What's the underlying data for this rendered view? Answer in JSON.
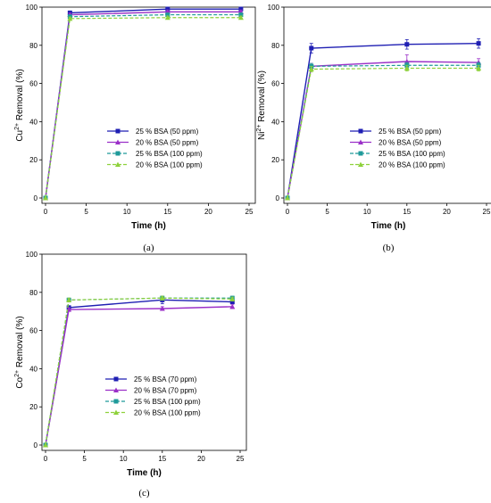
{
  "chart_data": [
    {
      "type": "line",
      "panel_label": "(a)",
      "xlabel": "Time (h)",
      "ylabel": "Cu2+ Removal (%)",
      "ylabel_ion": "Cu",
      "xlim": [
        0,
        25
      ],
      "ylim": [
        0,
        100
      ],
      "xticks": [
        0,
        5,
        10,
        15,
        20,
        25
      ],
      "yticks": [
        0,
        20,
        40,
        60,
        80,
        100
      ],
      "legend_position": "lower-center",
      "x": [
        0,
        3,
        15,
        24
      ],
      "series": [
        {
          "name": "25 % BSA (50 ppm)",
          "color": "#1f1fb3",
          "dash": false,
          "marker": "square",
          "values": [
            0,
            97,
            99,
            99
          ],
          "err": [
            0,
            1,
            1,
            1
          ]
        },
        {
          "name": "20 % BSA (50 ppm)",
          "color": "#9b30c8",
          "dash": false,
          "marker": "triangle",
          "values": [
            0,
            96,
            97.5,
            97.5
          ],
          "err": [
            0,
            0.8,
            1,
            1
          ]
        },
        {
          "name": "25 % BSA (100 ppm)",
          "color": "#1f9a9a",
          "dash": true,
          "marker": "square",
          "values": [
            0,
            95,
            96,
            96
          ],
          "err": [
            0,
            0.8,
            0.8,
            0.8
          ]
        },
        {
          "name": "20 % BSA (100 ppm)",
          "color": "#8ed13b",
          "dash": true,
          "marker": "triangle",
          "values": [
            0,
            94,
            94.5,
            94.5
          ],
          "err": [
            0,
            0.8,
            0.8,
            0.8
          ]
        }
      ]
    },
    {
      "type": "line",
      "panel_label": "(b)",
      "xlabel": "Time (h)",
      "ylabel": "Ni2+ Removal (%)",
      "ylabel_ion": "Ni",
      "xlim": [
        0,
        25
      ],
      "ylim": [
        0,
        100
      ],
      "xticks": [
        0,
        5,
        10,
        15,
        20,
        25
      ],
      "yticks": [
        0,
        20,
        40,
        60,
        80,
        100
      ],
      "legend_position": "lower-center",
      "x": [
        0,
        3,
        15,
        24
      ],
      "series": [
        {
          "name": "25 % BSA (50 ppm)",
          "color": "#1f1fb3",
          "dash": false,
          "marker": "square",
          "values": [
            0,
            78.5,
            80.5,
            81
          ],
          "err": [
            0,
            2.5,
            2.5,
            2.5
          ]
        },
        {
          "name": "20 % BSA (50 ppm)",
          "color": "#9b30c8",
          "dash": false,
          "marker": "triangle",
          "values": [
            0,
            69,
            71.5,
            71
          ],
          "err": [
            0,
            1.5,
            3.5,
            2
          ]
        },
        {
          "name": "25 % BSA (100 ppm)",
          "color": "#1f9a9a",
          "dash": true,
          "marker": "square",
          "values": [
            0,
            69,
            69.5,
            69.5
          ],
          "err": [
            0,
            1.5,
            1.5,
            1.5
          ]
        },
        {
          "name": "20 % BSA (100 ppm)",
          "color": "#8ed13b",
          "dash": true,
          "marker": "triangle",
          "values": [
            0,
            67.5,
            68,
            68
          ],
          "err": [
            0,
            1.5,
            1.5,
            1.5
          ]
        }
      ]
    },
    {
      "type": "line",
      "panel_label": "(c)",
      "xlabel": "Time (h)",
      "ylabel": "Co2+ Removal (%)",
      "ylabel_ion": "Co",
      "xlim": [
        0,
        25
      ],
      "ylim": [
        0,
        100
      ],
      "xticks": [
        0,
        5,
        10,
        15,
        20,
        25
      ],
      "yticks": [
        0,
        20,
        40,
        60,
        80,
        100
      ],
      "legend_position": "lower-center",
      "x": [
        0,
        3,
        15,
        24
      ],
      "series": [
        {
          "name": "25 % BSA (70 ppm)",
          "color": "#1f1fb3",
          "dash": false,
          "marker": "square",
          "values": [
            0,
            72,
            76,
            75
          ],
          "err": [
            0,
            1,
            2,
            1
          ]
        },
        {
          "name": "20 % BSA (70 ppm)",
          "color": "#9b30c8",
          "dash": false,
          "marker": "triangle",
          "values": [
            0,
            71,
            71.5,
            72.5
          ],
          "err": [
            0,
            1,
            1,
            1
          ]
        },
        {
          "name": "25 % BSA (100 ppm)",
          "color": "#1f9a9a",
          "dash": true,
          "marker": "square",
          "values": [
            0,
            76,
            77,
            77
          ],
          "err": [
            0,
            1,
            1,
            1
          ]
        },
        {
          "name": "20 % BSA (100 ppm)",
          "color": "#8ed13b",
          "dash": true,
          "marker": "triangle",
          "values": [
            0,
            76,
            77,
            76.5
          ],
          "err": [
            0,
            1,
            1,
            1
          ]
        }
      ]
    }
  ]
}
